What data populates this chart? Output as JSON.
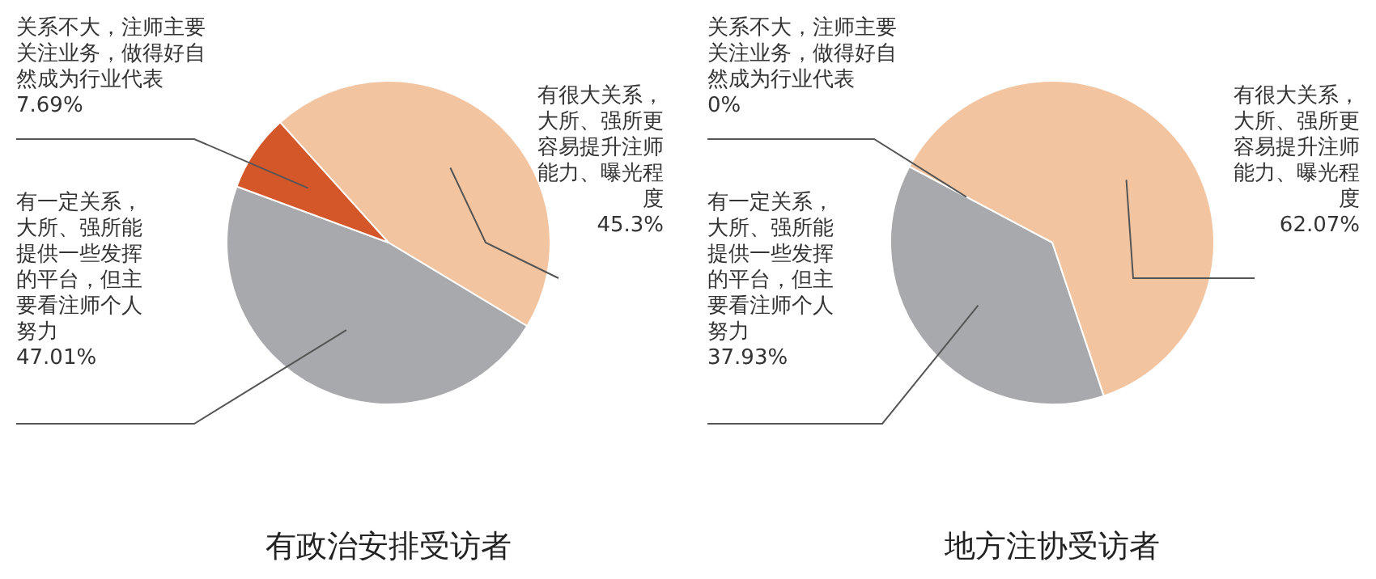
{
  "chart_data": [
    {
      "type": "pie",
      "title": "有政治安排受访者",
      "categories": [
        "有很大关系，大所、强所更容易提升注师能力、曝光程度",
        "有一定关系，大所、强所能提供一些发挥的平台，但主要看注师个人努力",
        "关系不大，注师主要关注业务，做得好自然成为行业代表"
      ],
      "values": [
        45.3,
        47.01,
        7.69
      ],
      "value_labels": [
        "45.3%",
        "47.01%",
        "7.69%"
      ],
      "colors": [
        "#f2c4a0",
        "#a7a9ac",
        "#d4572a"
      ]
    },
    {
      "type": "pie",
      "title": "地方注协受访者",
      "categories": [
        "有很大关系，大所、强所更容易提升注师能力、曝光程度",
        "有一定关系，大所、强所能提供一些发挥的平台，但主要看注师个人努力",
        "关系不大，注师主要关注业务，做得好自然成为行业代表"
      ],
      "values": [
        62.07,
        37.93,
        0
      ],
      "value_labels": [
        "62.07%",
        "37.93%",
        "0%"
      ],
      "colors": [
        "#f2c4a0",
        "#a7a9ac",
        "#d4572a"
      ]
    }
  ]
}
